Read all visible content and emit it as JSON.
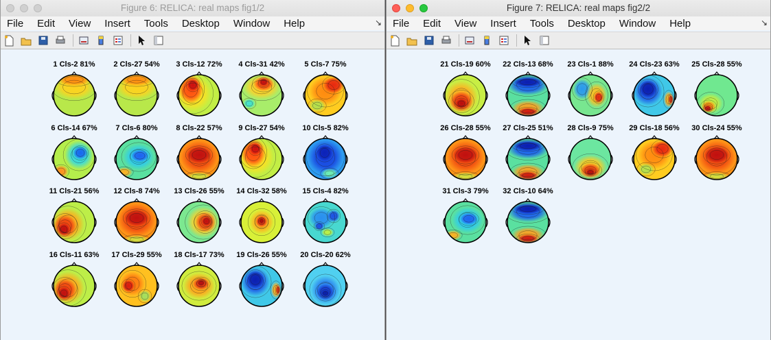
{
  "windows": [
    {
      "title": "Figure 6: RELICA: real maps fig1/2",
      "active": false,
      "menu": [
        "File",
        "Edit",
        "View",
        "Insert",
        "Tools",
        "Desktop",
        "Window",
        "Help"
      ],
      "toolbar_icons": [
        "new-figure-icon",
        "open-file-icon",
        "save-icon",
        "print-icon",
        "link-plot-icon",
        "colorbar-icon",
        "legend-icon",
        "select-pointer-icon",
        "property-editor-icon"
      ],
      "maps": [
        {
          "label": "1 Cls-2 81%",
          "scheme": "yellow-top-red"
        },
        {
          "label": "2 Cls-27 54%",
          "scheme": "yellow-top-red"
        },
        {
          "label": "3 Cls-12 72%",
          "scheme": "red-left"
        },
        {
          "label": "4 Cls-31 42%",
          "scheme": "red-top"
        },
        {
          "label": "5 Cls-7 75%",
          "scheme": "orange-red"
        },
        {
          "label": "6 Cls-14 67%",
          "scheme": "blue-right"
        },
        {
          "label": "7 Cls-6 80%",
          "scheme": "blue-center"
        },
        {
          "label": "8 Cls-22 57%",
          "scheme": "red-full"
        },
        {
          "label": "9 Cls-27 54%",
          "scheme": "red-left"
        },
        {
          "label": "10 Cls-5 82%",
          "scheme": "deep-blue"
        },
        {
          "label": "11 Cls-21 56%",
          "scheme": "red-diag"
        },
        {
          "label": "12 Cls-8 74%",
          "scheme": "red-full"
        },
        {
          "label": "13 Cls-26 55%",
          "scheme": "red-right"
        },
        {
          "label": "14 Cls-32 58%",
          "scheme": "red-spot"
        },
        {
          "label": "15 Cls-4 82%",
          "scheme": "blue-mixed"
        },
        {
          "label": "16 Cls-11 63%",
          "scheme": "red-diag"
        },
        {
          "label": "17 Cls-29 55%",
          "scheme": "red-spot-orange"
        },
        {
          "label": "18 Cls-17 73%",
          "scheme": "red-center"
        },
        {
          "label": "19 Cls-26 55%",
          "scheme": "blue-deep-left"
        },
        {
          "label": "20 Cls-20 62%",
          "scheme": "blue-bottom"
        }
      ]
    },
    {
      "title": "Figure 7: RELICA: real maps fig2/2",
      "active": true,
      "menu": [
        "File",
        "Edit",
        "View",
        "Insert",
        "Tools",
        "Desktop",
        "Window",
        "Help"
      ],
      "toolbar_icons": [
        "new-figure-icon",
        "open-file-icon",
        "save-icon",
        "print-icon",
        "link-plot-icon",
        "colorbar-icon",
        "legend-icon",
        "select-pointer-icon",
        "property-editor-icon"
      ],
      "maps": [
        {
          "label": "21 Cls-19 60%",
          "scheme": "red-bottom-left"
        },
        {
          "label": "22 Cls-13 68%",
          "scheme": "blue-top-red-bottom"
        },
        {
          "label": "23 Cls-1 88%",
          "scheme": "blue-mixed-red"
        },
        {
          "label": "24 Cls-23 63%",
          "scheme": "blue-deep-left"
        },
        {
          "label": "25 Cls-28 55%",
          "scheme": "green-red-bottom"
        },
        {
          "label": "26 Cls-28 55%",
          "scheme": "red-full"
        },
        {
          "label": "27 Cls-25 51%",
          "scheme": "blue-top-red-bottom"
        },
        {
          "label": "28 Cls-9 75%",
          "scheme": "red-bottom"
        },
        {
          "label": "29 Cls-18 56%",
          "scheme": "orange-red"
        },
        {
          "label": "30 Cls-24 55%",
          "scheme": "red-full"
        },
        {
          "label": "31 Cls-3 79%",
          "scheme": "blue-center"
        },
        {
          "label": "32 Cls-10 64%",
          "scheme": "blue-top-red-bottom"
        }
      ]
    }
  ],
  "schemes": {
    "yellow-top-red": {
      "bg": "#b8e84a",
      "blobs": [
        [
          "#ffd21e",
          0.5,
          0.3,
          0.5,
          0.3
        ],
        [
          "#ff8c10",
          0.5,
          0.12,
          0.4,
          0.15
        ]
      ]
    },
    "red-left": {
      "bg": "#c2ee45",
      "blobs": [
        [
          "#ffe020",
          0.35,
          0.45,
          0.45,
          0.45
        ],
        [
          "#ff4a10",
          0.3,
          0.35,
          0.3,
          0.35
        ],
        [
          "#cc1010",
          0.35,
          0.25,
          0.15,
          0.15
        ]
      ]
    },
    "red-top": {
      "bg": "#a8ed6a",
      "blobs": [
        [
          "#ffd028",
          0.5,
          0.3,
          0.45,
          0.3
        ],
        [
          "#ff5010",
          0.55,
          0.22,
          0.25,
          0.18
        ],
        [
          "#c41010",
          0.55,
          0.18,
          0.12,
          0.1
        ],
        [
          "#40e0d0",
          0.2,
          0.7,
          0.15,
          0.12
        ]
      ]
    },
    "orange-red": {
      "bg": "#ffcc20",
      "blobs": [
        [
          "#ff8a10",
          0.5,
          0.4,
          0.4,
          0.35
        ],
        [
          "#e82810",
          0.7,
          0.25,
          0.25,
          0.2
        ],
        [
          "#b0e050",
          0.3,
          0.75,
          0.2,
          0.15
        ]
      ]
    },
    "blue-right": {
      "bg": "#b5ee4c",
      "blobs": [
        [
          "#30d8e8",
          0.62,
          0.4,
          0.35,
          0.35
        ],
        [
          "#1866f0",
          0.65,
          0.35,
          0.18,
          0.16
        ],
        [
          "#ff9020",
          0.18,
          0.8,
          0.18,
          0.15
        ]
      ]
    },
    "blue-center": {
      "bg": "#5ae0a0",
      "blobs": [
        [
          "#2ccaf0",
          0.55,
          0.45,
          0.38,
          0.32
        ],
        [
          "#1f62f0",
          0.58,
          0.42,
          0.22,
          0.15
        ],
        [
          "#ffb020",
          0.2,
          0.82,
          0.2,
          0.12
        ]
      ]
    },
    "red-full": {
      "bg": "#ff9418",
      "blobs": [
        [
          "#f04810",
          0.5,
          0.45,
          0.45,
          0.4
        ],
        [
          "#c01010",
          0.5,
          0.4,
          0.3,
          0.2
        ],
        [
          "#d0e040",
          0.5,
          0.92,
          0.3,
          0.1
        ]
      ]
    },
    "deep-blue": {
      "bg": "#2e9cf0",
      "blobs": [
        [
          "#1845e0",
          0.5,
          0.45,
          0.42,
          0.42
        ],
        [
          "#0c22b8",
          0.48,
          0.35,
          0.2,
          0.2
        ],
        [
          "#70f0b0",
          0.6,
          0.85,
          0.2,
          0.12
        ]
      ]
    },
    "red-diag": {
      "bg": "#bdee48",
      "blobs": [
        [
          "#ffaa1c",
          0.35,
          0.55,
          0.4,
          0.4
        ],
        [
          "#f04010",
          0.28,
          0.6,
          0.28,
          0.28
        ],
        [
          "#c01010",
          0.25,
          0.68,
          0.15,
          0.15
        ]
      ]
    },
    "red-right": {
      "bg": "#7ce890",
      "blobs": [
        [
          "#ffcf28",
          0.6,
          0.5,
          0.4,
          0.38
        ],
        [
          "#f04812",
          0.65,
          0.5,
          0.25,
          0.25
        ],
        [
          "#c01010",
          0.68,
          0.48,
          0.12,
          0.12
        ]
      ]
    },
    "red-spot": {
      "bg": "#d8f038",
      "blobs": [
        [
          "#ffb020",
          0.5,
          0.5,
          0.3,
          0.3
        ],
        [
          "#e83010",
          0.5,
          0.48,
          0.15,
          0.15
        ],
        [
          "#b00e0e",
          0.5,
          0.47,
          0.07,
          0.07
        ]
      ]
    },
    "blue-mixed": {
      "bg": "#48d8d0",
      "blobs": [
        [
          "#2a8ef0",
          0.4,
          0.4,
          0.3,
          0.25
        ],
        [
          "#1c4fe4",
          0.7,
          0.35,
          0.15,
          0.15
        ],
        [
          "#1c4fe4",
          0.35,
          0.6,
          0.12,
          0.1
        ],
        [
          "#c0f040",
          0.55,
          0.75,
          0.15,
          0.1
        ]
      ]
    },
    "red-spot-orange": {
      "bg": "#ffc020",
      "blobs": [
        [
          "#ff7a10",
          0.4,
          0.45,
          0.3,
          0.3
        ],
        [
          "#d81a10",
          0.3,
          0.5,
          0.15,
          0.15
        ],
        [
          "#a0e060",
          0.7,
          0.75,
          0.15,
          0.15
        ]
      ]
    },
    "red-center": {
      "bg": "#d0ec3e",
      "blobs": [
        [
          "#ffa41c",
          0.5,
          0.5,
          0.38,
          0.32
        ],
        [
          "#e83812",
          0.55,
          0.45,
          0.2,
          0.15
        ],
        [
          "#b41010",
          0.55,
          0.43,
          0.1,
          0.08
        ]
      ]
    },
    "blue-deep-left": {
      "bg": "#40c8e8",
      "blobs": [
        [
          "#1e58e8",
          0.35,
          0.4,
          0.35,
          0.35
        ],
        [
          "#0c1fb0",
          0.35,
          0.35,
          0.22,
          0.22
        ],
        [
          "#ffb020",
          0.85,
          0.6,
          0.12,
          0.2
        ],
        [
          "#e03010",
          0.9,
          0.6,
          0.06,
          0.12
        ]
      ]
    },
    "blue-bottom": {
      "bg": "#50d0f0",
      "blobs": [
        [
          "#2a82f0",
          0.5,
          0.6,
          0.35,
          0.35
        ],
        [
          "#1438d0",
          0.5,
          0.65,
          0.22,
          0.2
        ],
        [
          "#0c20a8",
          0.5,
          0.68,
          0.1,
          0.08
        ]
      ]
    },
    "red-bottom-left": {
      "bg": "#c8ee44",
      "blobs": [
        [
          "#ffb020",
          0.4,
          0.55,
          0.4,
          0.4
        ],
        [
          "#ee3a10",
          0.4,
          0.65,
          0.28,
          0.25
        ],
        [
          "#b80e0e",
          0.4,
          0.7,
          0.15,
          0.12
        ]
      ]
    },
    "blue-top-red-bottom": {
      "bg": "#5ae0a0",
      "blobs": [
        [
          "#1a5cf0",
          0.5,
          0.25,
          0.5,
          0.25
        ],
        [
          "#0c1eb0",
          0.5,
          0.18,
          0.35,
          0.12
        ],
        [
          "#ffa020",
          0.5,
          0.82,
          0.4,
          0.2
        ],
        [
          "#d01810",
          0.5,
          0.9,
          0.25,
          0.1
        ]
      ]
    },
    "blue-mixed-red": {
      "bg": "#78e690",
      "blobs": [
        [
          "#2a98f0",
          0.3,
          0.35,
          0.22,
          0.25
        ],
        [
          "#ffc020",
          0.65,
          0.5,
          0.25,
          0.3
        ],
        [
          "#e02810",
          0.7,
          0.55,
          0.12,
          0.14
        ]
      ]
    },
    "green-red-bottom": {
      "bg": "#70e890",
      "blobs": [
        [
          "#c8ee40",
          0.35,
          0.7,
          0.3,
          0.25
        ],
        [
          "#ff8a10",
          0.3,
          0.78,
          0.18,
          0.15
        ],
        [
          "#c41010",
          0.28,
          0.82,
          0.1,
          0.08
        ]
      ]
    },
    "red-bottom": {
      "bg": "#6ce6a0",
      "blobs": [
        [
          "#ffcc20",
          0.5,
          0.7,
          0.4,
          0.3
        ],
        [
          "#ee4010",
          0.5,
          0.78,
          0.25,
          0.18
        ],
        [
          "#b40e0e",
          0.5,
          0.82,
          0.12,
          0.08
        ]
      ]
    }
  }
}
